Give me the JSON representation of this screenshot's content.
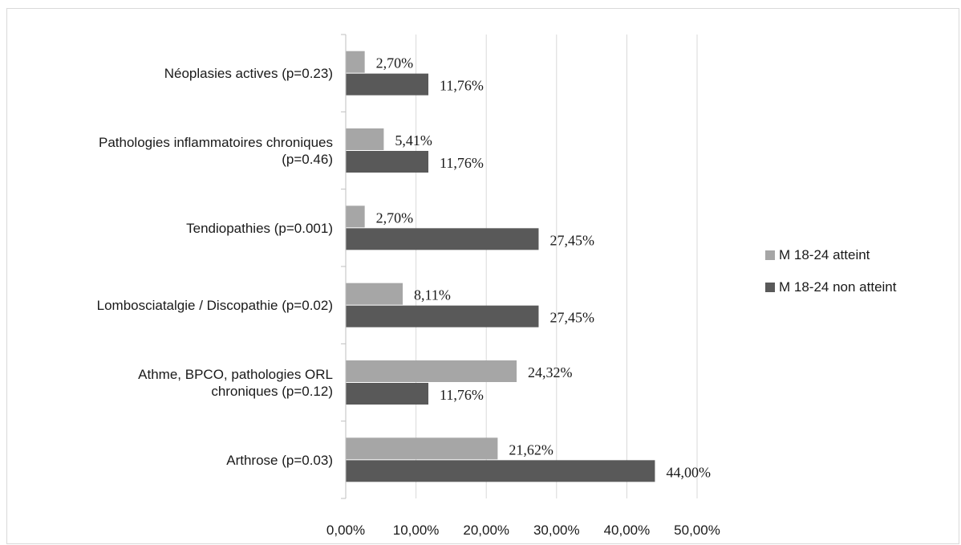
{
  "chart_data": {
    "type": "bar",
    "orientation": "horizontal",
    "title": "",
    "xlabel": "",
    "ylabel": "",
    "categories": [
      [
        "Arthrose (p=0.03)"
      ],
      [
        "Athme, BPCO, pathologies ORL",
        "chroniques (p=0.12)"
      ],
      [
        "Lombosciatalgie / Discopathie (p=0.02)"
      ],
      [
        "Tendiopathies (p=0.001)"
      ],
      [
        "Pathologies inflammatoires chroniques",
        "(p=0.46)"
      ],
      [
        "Néoplasies actives (p=0.23)"
      ]
    ],
    "series": [
      {
        "name": "M 18-24 atteint",
        "color": "#a6a6a6",
        "values": [
          21.62,
          24.32,
          8.11,
          2.7,
          5.41,
          2.7
        ],
        "labels": [
          "21,62%",
          "24,32%",
          "8,11%",
          "2,70%",
          "5,41%",
          "2,70%"
        ]
      },
      {
        "name": "M 18-24  non atteint",
        "color": "#595959",
        "values": [
          44.0,
          11.76,
          27.45,
          27.45,
          11.76,
          11.76
        ],
        "labels": [
          "44,00%",
          "11,76%",
          "27,45%",
          "27,45%",
          "11,76%",
          "11,76%"
        ]
      }
    ],
    "xlim": [
      0,
      50
    ],
    "ticks": [
      0,
      10,
      20,
      30,
      40,
      50
    ],
    "tick_labels": [
      "0,00%",
      "10,00%",
      "20,00%",
      "30,00%",
      "40,00%",
      "50,00%"
    ],
    "grid": true,
    "legend_position": "right"
  }
}
